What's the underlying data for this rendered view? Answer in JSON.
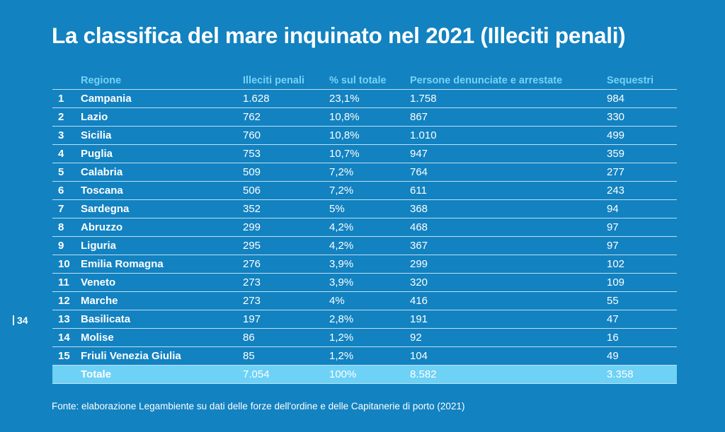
{
  "title": "La classifica del mare inquinato nel 2021 (Illeciti penali)",
  "page_number": "34",
  "table": {
    "headers": {
      "rank": "",
      "region": "Regione",
      "illeciti": "Illeciti penali",
      "percent": "% sul totale",
      "persone": "Persone denunciate e arrestate",
      "sequestri": "Sequestri"
    },
    "rows": [
      {
        "rank": "1",
        "region": "Campania",
        "illeciti": "1.628",
        "percent": "23,1%",
        "persone": "1.758",
        "sequestri": "984"
      },
      {
        "rank": "2",
        "region": "Lazio",
        "illeciti": "762",
        "percent": "10,8%",
        "persone": "867",
        "sequestri": "330"
      },
      {
        "rank": "3",
        "region": "Sicilia",
        "illeciti": "760",
        "percent": "10,8%",
        "persone": "1.010",
        "sequestri": "499"
      },
      {
        "rank": "4",
        "region": "Puglia",
        "illeciti": "753",
        "percent": "10,7%",
        "persone": "947",
        "sequestri": "359"
      },
      {
        "rank": "5",
        "region": "Calabria",
        "illeciti": "509",
        "percent": "7,2%",
        "persone": "764",
        "sequestri": "277"
      },
      {
        "rank": "6",
        "region": "Toscana",
        "illeciti": "506",
        "percent": "7,2%",
        "persone": "611",
        "sequestri": "243"
      },
      {
        "rank": "7",
        "region": "Sardegna",
        "illeciti": "352",
        "percent": "5%",
        "persone": "368",
        "sequestri": "94"
      },
      {
        "rank": "8",
        "region": "Abruzzo",
        "illeciti": "299",
        "percent": "4,2%",
        "persone": "468",
        "sequestri": "97"
      },
      {
        "rank": "9",
        "region": "Liguria",
        "illeciti": "295",
        "percent": "4,2%",
        "persone": "367",
        "sequestri": "97"
      },
      {
        "rank": "10",
        "region": "Emilia Romagna",
        "illeciti": "276",
        "percent": "3,9%",
        "persone": "299",
        "sequestri": "102"
      },
      {
        "rank": "11",
        "region": "Veneto",
        "illeciti": "273",
        "percent": "3,9%",
        "persone": "320",
        "sequestri": "109"
      },
      {
        "rank": "12",
        "region": "Marche",
        "illeciti": "273",
        "percent": "4%",
        "persone": "416",
        "sequestri": "55"
      },
      {
        "rank": "13",
        "region": "Basilicata",
        "illeciti": "197",
        "percent": "2,8%",
        "persone": "191",
        "sequestri": "47"
      },
      {
        "rank": "14",
        "region": "Molise",
        "illeciti": "86",
        "percent": "1,2%",
        "persone": "92",
        "sequestri": "16"
      },
      {
        "rank": "15",
        "region": "Friuli Venezia Giulia",
        "illeciti": "85",
        "percent": "1,2%",
        "persone": "104",
        "sequestri": "49"
      }
    ],
    "total": {
      "rank": "",
      "region": "Totale",
      "illeciti": "7.054",
      "percent": "100%",
      "persone": "8.582",
      "sequestri": "3.358"
    }
  },
  "source": "Fonte: elaborazione Legambiente su dati delle forze dell'ordine e delle Capitanerie di porto (2021)",
  "colors": {
    "background": "#1282c1",
    "header_text": "#76d3f5",
    "total_row": "#6ed1f6",
    "text": "#ffffff"
  }
}
